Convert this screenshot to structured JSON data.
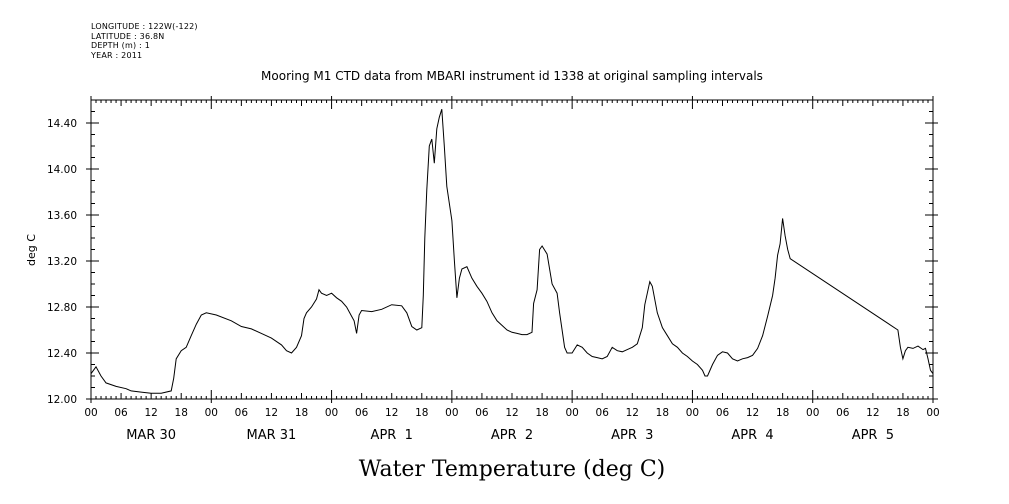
{
  "header": {
    "longitude": "LONGITUDE : 122W(-122)",
    "latitude": "LATITUDE : 36.8N",
    "depth": "DEPTH (m) : 1",
    "year": "YEAR : 2011"
  },
  "chart_data": {
    "type": "line",
    "title": "Mooring M1 CTD data from MBARI instrument id 1338 at original sampling intervals",
    "xlabel": "Water Temperature (deg C)",
    "ylabel": "deg C",
    "xunit": "hours since MAR 30 00:00",
    "xlim": [
      0,
      168
    ],
    "ylim": [
      12.0,
      14.6
    ],
    "yticks": [
      12.0,
      12.4,
      12.8,
      13.2,
      13.6,
      14.0,
      14.4
    ],
    "ytick_labels": [
      "12.00",
      "12.40",
      "12.80",
      "13.20",
      "13.60",
      "14.00",
      "14.40"
    ],
    "hour_labels": [
      "00",
      "06",
      "12",
      "18",
      "00",
      "06",
      "12",
      "18",
      "00",
      "06",
      "12",
      "18",
      "00",
      "06",
      "12",
      "18",
      "00",
      "06",
      "12",
      "18",
      "00",
      "06",
      "12",
      "18",
      "00",
      "06",
      "12",
      "18",
      "00"
    ],
    "day_labels": [
      "MAR 30",
      "MAR 31",
      "APR  1",
      "APR  2",
      "APR  3",
      "APR  4",
      "APR  5"
    ],
    "series": [
      {
        "name": "",
        "points": [
          [
            0,
            12.22
          ],
          [
            1,
            12.28
          ],
          [
            2,
            12.2
          ],
          [
            3,
            12.14
          ],
          [
            5,
            12.11
          ],
          [
            7,
            12.09
          ],
          [
            8,
            12.07
          ],
          [
            10,
            12.06
          ],
          [
            12,
            12.05
          ],
          [
            14,
            12.05
          ],
          [
            16,
            12.07
          ],
          [
            16.5,
            12.18
          ],
          [
            17,
            12.35
          ],
          [
            18,
            12.42
          ],
          [
            19,
            12.45
          ],
          [
            20,
            12.55
          ],
          [
            21,
            12.65
          ],
          [
            22,
            12.73
          ],
          [
            23,
            12.75
          ],
          [
            25,
            12.73
          ],
          [
            28,
            12.68
          ],
          [
            30,
            12.63
          ],
          [
            32,
            12.61
          ],
          [
            34,
            12.57
          ],
          [
            36,
            12.53
          ],
          [
            38,
            12.47
          ],
          [
            39,
            12.42
          ],
          [
            40,
            12.4
          ],
          [
            41,
            12.45
          ],
          [
            42,
            12.55
          ],
          [
            42.5,
            12.7
          ],
          [
            43,
            12.75
          ],
          [
            44,
            12.8
          ],
          [
            45,
            12.87
          ],
          [
            45.5,
            12.95
          ],
          [
            46,
            12.92
          ],
          [
            47,
            12.9
          ],
          [
            48,
            12.92
          ],
          [
            49,
            12.88
          ],
          [
            50,
            12.85
          ],
          [
            51,
            12.8
          ],
          [
            52,
            12.72
          ],
          [
            52.5,
            12.68
          ],
          [
            53,
            12.57
          ],
          [
            53.5,
            12.73
          ],
          [
            54,
            12.77
          ],
          [
            56,
            12.76
          ],
          [
            58,
            12.78
          ],
          [
            60,
            12.82
          ],
          [
            62,
            12.81
          ],
          [
            63,
            12.75
          ],
          [
            64,
            12.63
          ],
          [
            65,
            12.6
          ],
          [
            66,
            12.62
          ],
          [
            66.3,
            12.9
          ],
          [
            66.6,
            13.4
          ],
          [
            67,
            13.82
          ],
          [
            67.5,
            14.2
          ],
          [
            68,
            14.26
          ],
          [
            68.5,
            14.05
          ],
          [
            69,
            14.35
          ],
          [
            69.5,
            14.45
          ],
          [
            70,
            14.52
          ],
          [
            70.5,
            14.2
          ],
          [
            71,
            13.85
          ],
          [
            72,
            13.55
          ],
          [
            72.5,
            13.2
          ],
          [
            73,
            12.88
          ],
          [
            73.5,
            13.05
          ],
          [
            74,
            13.13
          ],
          [
            75,
            13.15
          ],
          [
            76,
            13.05
          ],
          [
            77,
            12.98
          ],
          [
            78,
            12.92
          ],
          [
            79,
            12.85
          ],
          [
            80,
            12.75
          ],
          [
            81,
            12.68
          ],
          [
            82,
            12.64
          ],
          [
            83,
            12.6
          ],
          [
            84,
            12.58
          ],
          [
            85,
            12.57
          ],
          [
            86,
            12.56
          ],
          [
            87,
            12.56
          ],
          [
            88,
            12.58
          ],
          [
            88.3,
            12.83
          ],
          [
            89,
            12.95
          ],
          [
            89.5,
            13.3
          ],
          [
            90,
            13.33
          ],
          [
            91,
            13.26
          ],
          [
            92,
            13.0
          ],
          [
            93,
            12.92
          ],
          [
            93.5,
            12.75
          ],
          [
            94,
            12.6
          ],
          [
            94.5,
            12.45
          ],
          [
            95,
            12.4
          ],
          [
            96,
            12.4
          ],
          [
            97,
            12.47
          ],
          [
            98,
            12.45
          ],
          [
            99,
            12.4
          ],
          [
            100,
            12.37
          ],
          [
            101,
            12.36
          ],
          [
            102,
            12.35
          ],
          [
            103,
            12.37
          ],
          [
            104,
            12.45
          ],
          [
            105,
            12.42
          ],
          [
            106,
            12.41
          ],
          [
            107,
            12.43
          ],
          [
            108,
            12.45
          ],
          [
            109,
            12.48
          ],
          [
            110,
            12.62
          ],
          [
            110.5,
            12.82
          ],
          [
            111,
            12.92
          ],
          [
            111.5,
            13.02
          ],
          [
            112,
            12.98
          ],
          [
            113,
            12.75
          ],
          [
            114,
            12.62
          ],
          [
            115,
            12.55
          ],
          [
            116,
            12.48
          ],
          [
            117,
            12.45
          ],
          [
            118,
            12.4
          ],
          [
            119,
            12.37
          ],
          [
            120,
            12.33
          ],
          [
            121,
            12.3
          ],
          [
            122,
            12.25
          ],
          [
            122.5,
            12.2
          ],
          [
            123,
            12.2
          ],
          [
            124,
            12.3
          ],
          [
            125,
            12.38
          ],
          [
            126,
            12.41
          ],
          [
            127,
            12.4
          ],
          [
            128,
            12.35
          ],
          [
            129,
            12.33
          ],
          [
            130,
            12.35
          ],
          [
            131,
            12.36
          ],
          [
            132,
            12.38
          ],
          [
            133,
            12.44
          ],
          [
            134,
            12.55
          ],
          [
            135,
            12.72
          ],
          [
            136,
            12.9
          ],
          [
            136.5,
            13.05
          ],
          [
            137,
            13.25
          ],
          [
            137.5,
            13.35
          ],
          [
            138,
            13.57
          ],
          [
            138.5,
            13.42
          ],
          [
            139,
            13.3
          ],
          [
            139.5,
            13.22
          ],
          [
            161,
            12.6
          ],
          [
            161.5,
            12.45
          ],
          [
            162,
            12.35
          ],
          [
            162.5,
            12.42
          ],
          [
            163,
            12.45
          ],
          [
            164,
            12.44
          ],
          [
            165,
            12.46
          ],
          [
            166,
            12.43
          ],
          [
            166.5,
            12.44
          ],
          [
            167,
            12.35
          ],
          [
            167.5,
            12.25
          ],
          [
            168,
            12.22
          ]
        ]
      }
    ]
  }
}
